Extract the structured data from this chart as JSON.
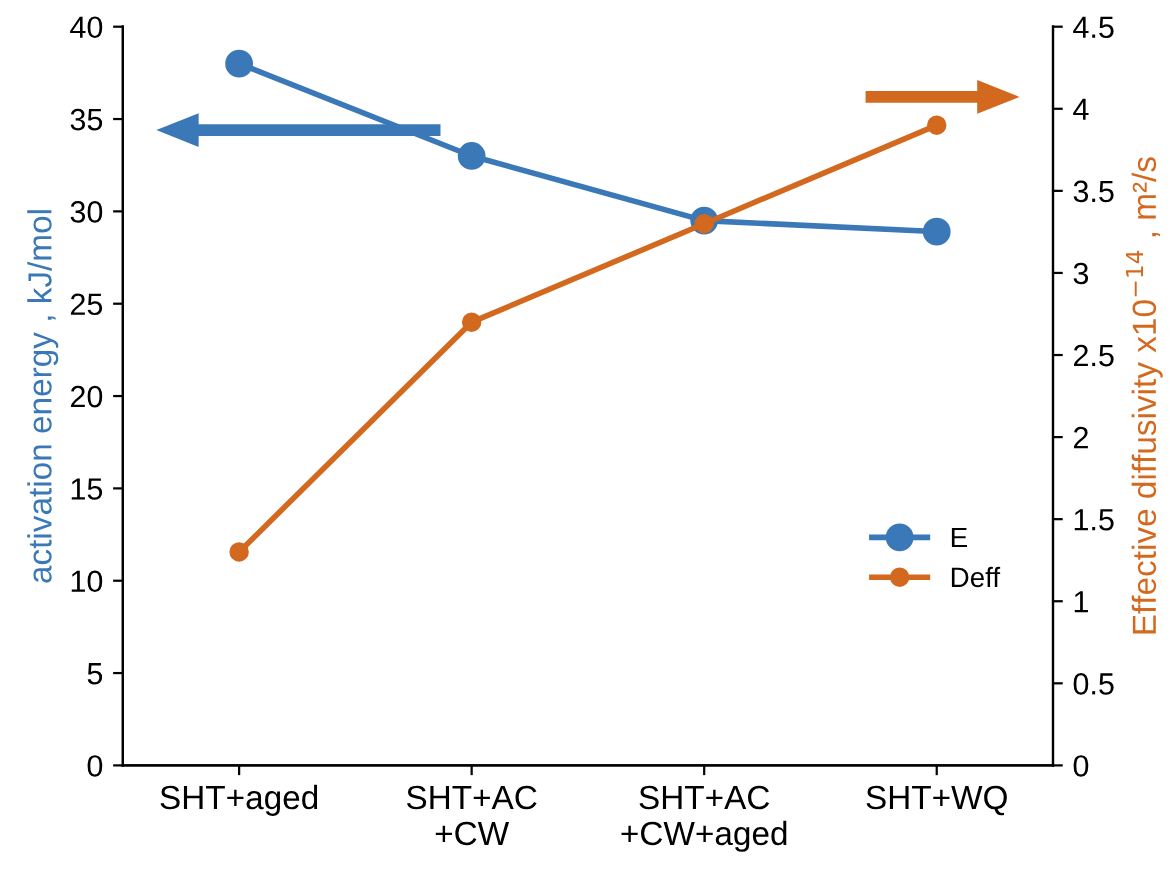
{
  "chart_data": {
    "type": "line",
    "categories": [
      "SHT+aged",
      "SHT+AC\n+CW",
      "SHT+AC\n+CW+aged",
      "SHT+WQ"
    ],
    "ylabel": "activation energy , kJ/mol",
    "y2label": "Effective diffusivity x10$^{−14}$ , m²/s",
    "ylim": [
      0,
      40
    ],
    "yticks": [
      0,
      5,
      10,
      15,
      20,
      25,
      30,
      35,
      40
    ],
    "y2lim": [
      0,
      4.5
    ],
    "y2ticks": [
      0,
      0.5,
      1,
      1.5,
      2,
      2.5,
      3,
      3.5,
      4,
      4.5
    ],
    "marker": "circle",
    "line_style": "solid",
    "grid": false,
    "legend": "lower right",
    "series": [
      {
        "name": "E",
        "color": "#3b78b8",
        "values": [
          38,
          33,
          29.5,
          28.9
        ]
      },
      {
        "name": "Deff",
        "color": "#d2691e",
        "axis": "y2",
        "values": [
          1.3,
          2.7,
          3.3,
          3.9
        ]
      }
    ]
  }
}
